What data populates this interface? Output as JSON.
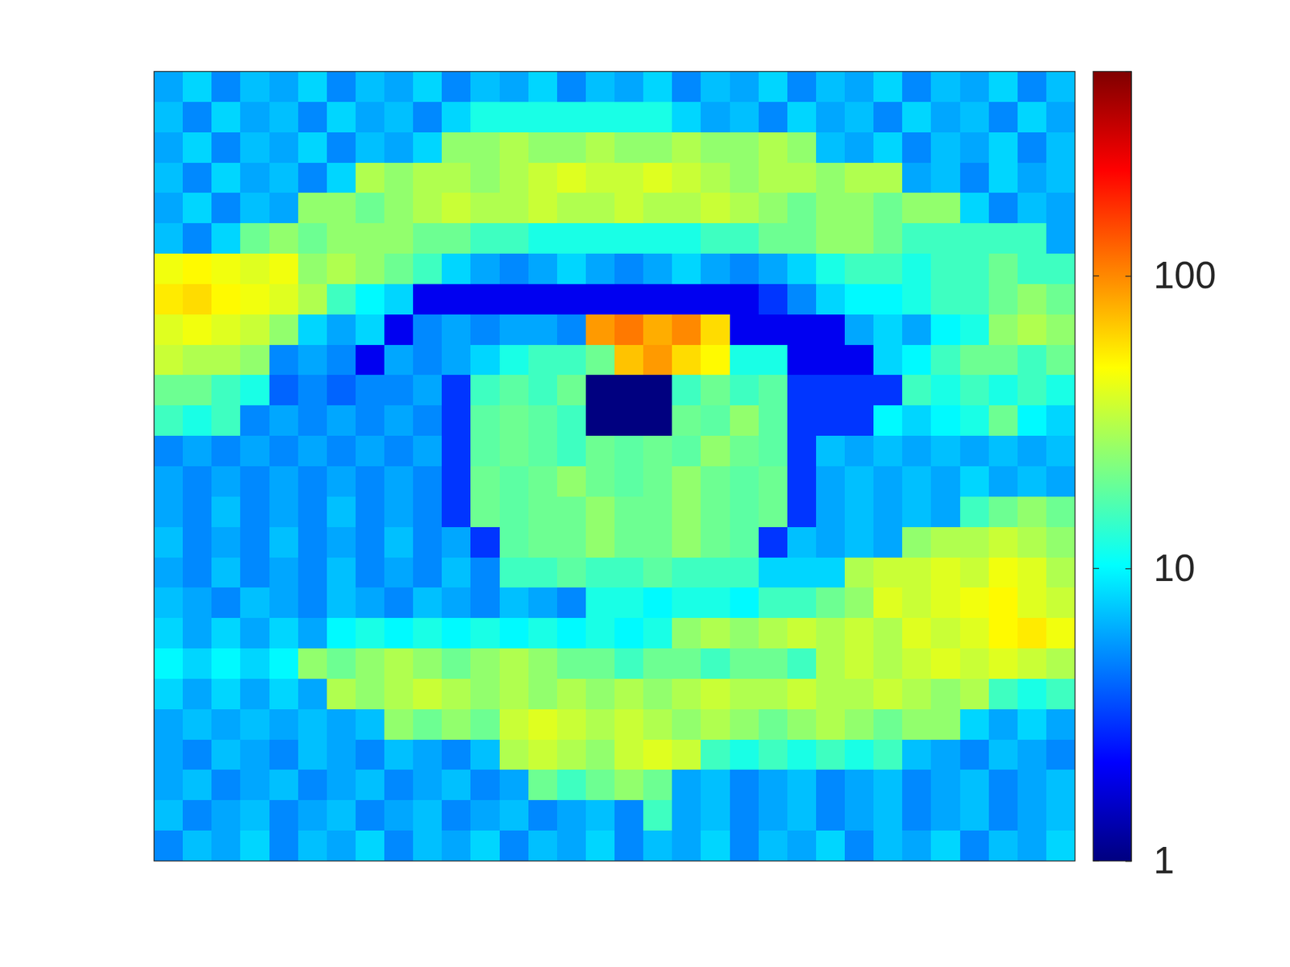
{
  "chart_data": {
    "type": "heatmap",
    "log": true,
    "tick_labels": false,
    "colorbar": {
      "range": [
        1,
        500
      ],
      "ticks": [
        1,
        10,
        100
      ]
    },
    "cells": [
      [
        6,
        8,
        5,
        7,
        6,
        8,
        5,
        7,
        6,
        8,
        5,
        7,
        6,
        8,
        5,
        7,
        6,
        8,
        5,
        7,
        6,
        8,
        5,
        7,
        6,
        8,
        5,
        7,
        6,
        8,
        5,
        7
      ],
      [
        7,
        5,
        8,
        6,
        7,
        5,
        8,
        6,
        7,
        5,
        8,
        12,
        12,
        12,
        12,
        12,
        12,
        12,
        8,
        6,
        7,
        5,
        8,
        6,
        7,
        5,
        8,
        6,
        7,
        5,
        8,
        6
      ],
      [
        6,
        8,
        5,
        7,
        6,
        8,
        5,
        7,
        6,
        8,
        25,
        25,
        30,
        25,
        25,
        30,
        25,
        25,
        30,
        25,
        25,
        30,
        25,
        7,
        6,
        8,
        5,
        7,
        6,
        8,
        5,
        7
      ],
      [
        7,
        5,
        8,
        6,
        7,
        5,
        8,
        30,
        25,
        30,
        30,
        25,
        30,
        35,
        40,
        35,
        35,
        40,
        35,
        30,
        25,
        30,
        30,
        25,
        30,
        30,
        6,
        7,
        5,
        8,
        6,
        7
      ],
      [
        6,
        8,
        5,
        7,
        6,
        25,
        25,
        20,
        25,
        30,
        35,
        30,
        30,
        35,
        30,
        30,
        35,
        30,
        30,
        35,
        30,
        25,
        20,
        25,
        25,
        20,
        25,
        25,
        8,
        5,
        7,
        6
      ],
      [
        7,
        5,
        8,
        20,
        25,
        20,
        25,
        25,
        25,
        20,
        20,
        15,
        15,
        12,
        12,
        12,
        12,
        12,
        12,
        15,
        15,
        20,
        20,
        25,
        25,
        20,
        15,
        15,
        15,
        15,
        15,
        6
      ],
      [
        45,
        50,
        45,
        40,
        45,
        25,
        30,
        25,
        20,
        15,
        8,
        6,
        5,
        6,
        8,
        6,
        5,
        6,
        8,
        6,
        5,
        6,
        8,
        12,
        15,
        15,
        12,
        15,
        15,
        20,
        15,
        15
      ],
      [
        55,
        60,
        50,
        45,
        40,
        30,
        15,
        10,
        8,
        2,
        2,
        2,
        2,
        2,
        2,
        2,
        2,
        2,
        2,
        2,
        2,
        3,
        5,
        8,
        10,
        10,
        12,
        15,
        15,
        20,
        25,
        20
      ],
      [
        40,
        45,
        40,
        35,
        25,
        8,
        6,
        8,
        2,
        5,
        6,
        5,
        6,
        6,
        5,
        90,
        110,
        80,
        100,
        60,
        2,
        2,
        2,
        2,
        6,
        8,
        6,
        10,
        12,
        25,
        30,
        25
      ],
      [
        35,
        30,
        30,
        25,
        5,
        6,
        5,
        2,
        6,
        5,
        6,
        8,
        12,
        15,
        15,
        20,
        70,
        90,
        60,
        50,
        12,
        12,
        2,
        2,
        2,
        8,
        10,
        15,
        20,
        20,
        15,
        20
      ],
      [
        20,
        20,
        15,
        12,
        4,
        5,
        4,
        5,
        5,
        6,
        3,
        15,
        18,
        15,
        20,
        1,
        1,
        1,
        15,
        20,
        15,
        18,
        3,
        3,
        3,
        3,
        15,
        12,
        15,
        12,
        15,
        12
      ],
      [
        15,
        12,
        15,
        5,
        6,
        5,
        6,
        5,
        6,
        5,
        3,
        18,
        20,
        18,
        15,
        1,
        1,
        1,
        20,
        18,
        25,
        18,
        3,
        3,
        3,
        10,
        8,
        10,
        12,
        20,
        10,
        8
      ],
      [
        5,
        6,
        5,
        6,
        5,
        6,
        5,
        6,
        5,
        6,
        3,
        18,
        20,
        18,
        15,
        20,
        18,
        20,
        18,
        25,
        20,
        18,
        3,
        7,
        6,
        7,
        6,
        7,
        6,
        7,
        6,
        7
      ],
      [
        6,
        5,
        6,
        5,
        6,
        5,
        6,
        5,
        6,
        5,
        3,
        20,
        18,
        20,
        25,
        20,
        18,
        20,
        25,
        20,
        18,
        20,
        3,
        6,
        7,
        6,
        7,
        6,
        8,
        6,
        7,
        6
      ],
      [
        6,
        5,
        7,
        5,
        6,
        5,
        7,
        5,
        6,
        5,
        3,
        20,
        18,
        20,
        20,
        25,
        20,
        20,
        25,
        20,
        18,
        20,
        3,
        6,
        7,
        6,
        7,
        6,
        15,
        20,
        25,
        20
      ],
      [
        7,
        5,
        6,
        5,
        7,
        5,
        6,
        5,
        7,
        5,
        6,
        3,
        18,
        20,
        20,
        25,
        20,
        20,
        25,
        20,
        18,
        3,
        7,
        6,
        7,
        6,
        25,
        30,
        30,
        35,
        30,
        25
      ],
      [
        6,
        5,
        7,
        5,
        6,
        5,
        7,
        5,
        6,
        5,
        7,
        5,
        15,
        15,
        18,
        15,
        15,
        18,
        15,
        15,
        15,
        8,
        8,
        8,
        30,
        35,
        35,
        40,
        35,
        45,
        40,
        30
      ],
      [
        7,
        6,
        5,
        7,
        6,
        5,
        7,
        6,
        5,
        7,
        6,
        5,
        7,
        6,
        5,
        12,
        12,
        10,
        12,
        12,
        10,
        15,
        15,
        20,
        25,
        40,
        35,
        40,
        45,
        50,
        40,
        35
      ],
      [
        8,
        6,
        8,
        6,
        8,
        6,
        10,
        12,
        10,
        12,
        10,
        12,
        10,
        12,
        10,
        12,
        10,
        12,
        25,
        30,
        25,
        30,
        35,
        30,
        35,
        30,
        40,
        35,
        40,
        50,
        55,
        45
      ],
      [
        10,
        8,
        10,
        8,
        10,
        25,
        20,
        25,
        30,
        25,
        20,
        25,
        30,
        25,
        20,
        20,
        15,
        20,
        20,
        15,
        20,
        20,
        15,
        30,
        35,
        30,
        35,
        40,
        35,
        40,
        35,
        30
      ],
      [
        8,
        6,
        8,
        6,
        8,
        6,
        30,
        25,
        30,
        35,
        30,
        25,
        30,
        25,
        30,
        25,
        30,
        25,
        30,
        35,
        30,
        30,
        35,
        30,
        30,
        35,
        30,
        25,
        30,
        15,
        12,
        15
      ],
      [
        6,
        7,
        6,
        7,
        6,
        7,
        6,
        7,
        25,
        20,
        25,
        20,
        35,
        40,
        35,
        30,
        35,
        30,
        25,
        30,
        25,
        20,
        25,
        30,
        25,
        20,
        25,
        25,
        8,
        6,
        8,
        6
      ],
      [
        6,
        5,
        7,
        6,
        5,
        7,
        6,
        5,
        7,
        6,
        5,
        7,
        30,
        35,
        30,
        25,
        35,
        40,
        35,
        15,
        12,
        15,
        12,
        15,
        12,
        15,
        7,
        6,
        5,
        7,
        6,
        5
      ],
      [
        6,
        7,
        5,
        6,
        7,
        5,
        6,
        7,
        5,
        6,
        7,
        5,
        6,
        20,
        15,
        20,
        25,
        20,
        6,
        7,
        5,
        6,
        7,
        5,
        6,
        7,
        5,
        6,
        7,
        5,
        6,
        7
      ],
      [
        7,
        5,
        6,
        7,
        5,
        6,
        7,
        5,
        6,
        7,
        5,
        6,
        7,
        5,
        6,
        7,
        5,
        15,
        6,
        7,
        5,
        6,
        7,
        5,
        6,
        7,
        5,
        6,
        7,
        5,
        6,
        7
      ],
      [
        5,
        7,
        6,
        8,
        5,
        7,
        6,
        8,
        5,
        7,
        6,
        8,
        5,
        7,
        6,
        8,
        5,
        7,
        6,
        8,
        5,
        7,
        6,
        8,
        5,
        7,
        6,
        8,
        5,
        7,
        6,
        8
      ]
    ]
  }
}
